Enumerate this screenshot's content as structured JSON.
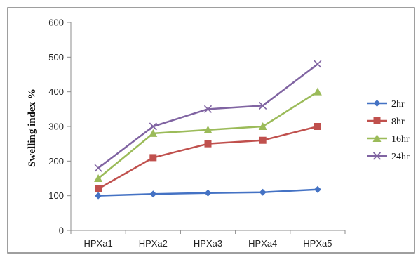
{
  "chart_data": {
    "type": "line",
    "categories": [
      "HPXa1",
      "HPXa2",
      "HPXa3",
      "HPXa4",
      "HPXa5"
    ],
    "ylabel": "Swelling index %",
    "xlabel": "",
    "ylim": [
      0,
      600
    ],
    "yticks": [
      0,
      100,
      200,
      300,
      400,
      500,
      600
    ],
    "grid": false,
    "legend_position": "right",
    "series": [
      {
        "name": "2hr",
        "values": [
          100,
          105,
          108,
          110,
          118
        ],
        "color": "#4472C4",
        "marker": "diamond"
      },
      {
        "name": "8hr",
        "values": [
          120,
          210,
          250,
          260,
          300
        ],
        "color": "#C0504D",
        "marker": "square"
      },
      {
        "name": "16hr",
        "values": [
          150,
          280,
          290,
          300,
          400
        ],
        "color": "#9BBB59",
        "marker": "triangle"
      },
      {
        "name": "24hr",
        "values": [
          180,
          300,
          350,
          360,
          480
        ],
        "color": "#8064A2",
        "marker": "x"
      }
    ]
  }
}
